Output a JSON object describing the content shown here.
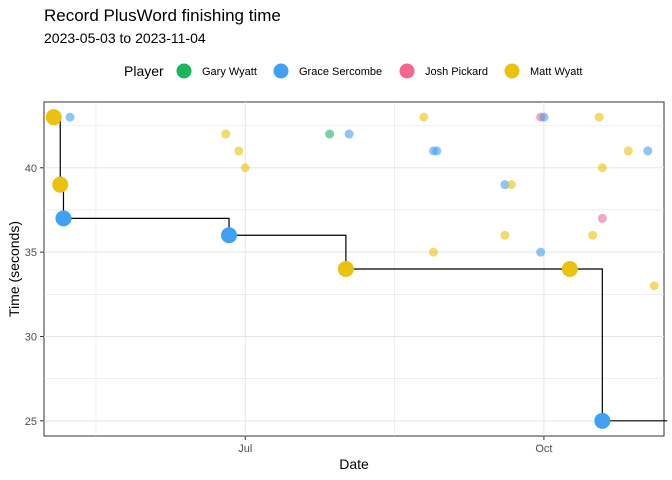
{
  "chart_data": {
    "type": "scatter",
    "title": "Record PlusWord finishing time",
    "subtitle": "2023-05-03 to 2023-11-04",
    "xlabel": "Date",
    "ylabel": "Time (seconds)",
    "xlim": [
      "2023-04-30",
      "2023-11-07"
    ],
    "ylim": [
      24.1,
      43.9
    ],
    "x_ticks": [
      {
        "date": "2023-07-01",
        "label": "Jul"
      },
      {
        "date": "2023-10-01",
        "label": "Oct"
      }
    ],
    "y_ticks": [
      25,
      30,
      35,
      40
    ],
    "grid": true,
    "legend": {
      "title": "Player",
      "placement": "top",
      "entries": [
        {
          "name": "Gary Wyatt",
          "color": "#1BB461"
        },
        {
          "name": "Grace Sercombe",
          "color": "#3FA0F5"
        },
        {
          "name": "Josh Pickard",
          "color": "#F7668F"
        },
        {
          "name": "Matt Wyatt",
          "color": "#EBC10E"
        }
      ]
    },
    "points": [
      {
        "date": "2023-05-08",
        "y": 43,
        "player": "Grace Sercombe"
      },
      {
        "date": "2023-06-25",
        "y": 42,
        "player": "Matt Wyatt"
      },
      {
        "date": "2023-06-29",
        "y": 41,
        "player": "Matt Wyatt"
      },
      {
        "date": "2023-07-01",
        "y": 40,
        "player": "Matt Wyatt"
      },
      {
        "date": "2023-07-27",
        "y": 42,
        "player": "Gary Wyatt"
      },
      {
        "date": "2023-08-02",
        "y": 42,
        "player": "Grace Sercombe"
      },
      {
        "date": "2023-08-25",
        "y": 43,
        "player": "Matt Wyatt"
      },
      {
        "date": "2023-08-28",
        "y": 41,
        "player": "Grace Sercombe"
      },
      {
        "date": "2023-08-29",
        "y": 41,
        "player": "Grace Sercombe"
      },
      {
        "date": "2023-08-28",
        "y": 35,
        "player": "Matt Wyatt"
      },
      {
        "date": "2023-09-19",
        "y": 39,
        "player": "Grace Sercombe"
      },
      {
        "date": "2023-09-21",
        "y": 39,
        "player": "Matt Wyatt"
      },
      {
        "date": "2023-09-19",
        "y": 36,
        "player": "Matt Wyatt"
      },
      {
        "date": "2023-09-30",
        "y": 43,
        "player": "Josh Pickard"
      },
      {
        "date": "2023-10-01",
        "y": 43,
        "player": "Grace Sercombe"
      },
      {
        "date": "2023-09-30",
        "y": 35,
        "player": "Grace Sercombe"
      },
      {
        "date": "2023-10-16",
        "y": 36,
        "player": "Matt Wyatt"
      },
      {
        "date": "2023-10-18",
        "y": 43,
        "player": "Matt Wyatt"
      },
      {
        "date": "2023-10-19",
        "y": 37,
        "player": "Josh Pickard"
      },
      {
        "date": "2023-10-19",
        "y": 40,
        "player": "Matt Wyatt"
      },
      {
        "date": "2023-10-27",
        "y": 41,
        "player": "Matt Wyatt"
      },
      {
        "date": "2023-11-02",
        "y": 41,
        "player": "Grace Sercombe"
      },
      {
        "date": "2023-11-04",
        "y": 33,
        "player": "Matt Wyatt"
      }
    ],
    "records": [
      {
        "date": "2023-05-03",
        "y": 43,
        "player": "Matt Wyatt"
      },
      {
        "date": "2023-05-05",
        "y": 39,
        "player": "Matt Wyatt"
      },
      {
        "date": "2023-05-06",
        "y": 37,
        "player": "Grace Sercombe"
      },
      {
        "date": "2023-06-26",
        "y": 36,
        "player": "Grace Sercombe"
      },
      {
        "date": "2023-08-01",
        "y": 34,
        "player": "Matt Wyatt"
      },
      {
        "date": "2023-10-09",
        "y": 34,
        "player": "Matt Wyatt"
      },
      {
        "date": "2023-10-19",
        "y": 25,
        "player": "Grace Sercombe"
      }
    ],
    "step_end": "2023-11-08"
  }
}
